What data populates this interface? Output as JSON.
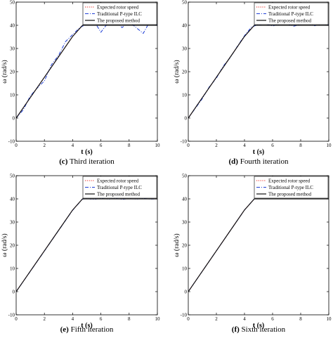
{
  "colors": {
    "expected": "#e8231c",
    "traditional": "#1f3fd6",
    "proposed": "#111111",
    "axis": "#000000"
  },
  "chart_data": [
    {
      "type": "line",
      "caption": {
        "letter": "(c)",
        "text": "Third iteration"
      },
      "xlabel": "t (s)",
      "ylabel": "ω (rad/s)",
      "xlim": [
        0,
        10
      ],
      "ylim": [
        -10,
        50
      ],
      "xticks": [
        0,
        2,
        4,
        6,
        8,
        10
      ],
      "yticks": [
        -10,
        0,
        10,
        20,
        30,
        40,
        50
      ],
      "grid": false,
      "legend": {
        "placement": "top-right",
        "entries": [
          "Expected rotor speed",
          "Traditional P-type ILC",
          "The proposed method"
        ]
      },
      "series": [
        {
          "name": "Expected rotor speed",
          "style": "dotted",
          "x": [
            0,
            1,
            2,
            3,
            4,
            4.7,
            5,
            6,
            7,
            8,
            9,
            10
          ],
          "y": [
            0,
            8.8,
            17.6,
            26.4,
            35.2,
            40,
            40,
            40,
            40,
            40,
            40,
            40
          ]
        },
        {
          "name": "Traditional P-type ILC",
          "style": "dashdot",
          "x": [
            0,
            0.5,
            1,
            1.5,
            2,
            2.5,
            3,
            3.5,
            4,
            4.5,
            5,
            5.5,
            6,
            6.5,
            7,
            7.5,
            8,
            8.5,
            9,
            9.5,
            10
          ],
          "y": [
            0,
            3.5,
            9.5,
            13,
            16,
            23,
            27,
            33,
            36,
            39,
            40.5,
            42,
            37,
            41,
            42,
            39,
            41.5,
            39,
            36.5,
            42,
            40
          ]
        },
        {
          "name": "The proposed method",
          "style": "solid",
          "x": [
            0,
            1,
            2,
            3,
            4,
            4.7,
            5,
            6,
            7,
            8,
            9,
            10
          ],
          "y": [
            0,
            8.8,
            17.6,
            26.4,
            35.2,
            40,
            40,
            40,
            40,
            40,
            40,
            40
          ]
        }
      ]
    },
    {
      "type": "line",
      "caption": {
        "letter": "(d)",
        "text": "Fourth iteration"
      },
      "xlabel": "t (s)",
      "ylabel": "ω (rad/s)",
      "xlim": [
        0,
        10
      ],
      "ylim": [
        -10,
        50
      ],
      "xticks": [
        0,
        2,
        4,
        6,
        8,
        10
      ],
      "yticks": [
        -10,
        0,
        10,
        20,
        30,
        40,
        50
      ],
      "grid": false,
      "legend": {
        "placement": "top-right",
        "entries": [
          "Expected rotor speed",
          "Traditional P-type ILC",
          "The proposed method"
        ]
      },
      "series": [
        {
          "name": "Expected rotor speed",
          "style": "dotted",
          "x": [
            0,
            1,
            2,
            3,
            4,
            4.7,
            5,
            6,
            7,
            8,
            9,
            10
          ],
          "y": [
            0,
            8.8,
            17.6,
            26.4,
            35.2,
            40,
            40,
            40,
            40,
            40,
            40,
            40
          ]
        },
        {
          "name": "Traditional P-type ILC",
          "style": "dashdot",
          "x": [
            0,
            0.5,
            1,
            1.5,
            2,
            2.5,
            3,
            3.5,
            4,
            4.5,
            5,
            5.5,
            6,
            6.5,
            7,
            7.5,
            8,
            8.5,
            9,
            9.5,
            10
          ],
          "y": [
            0,
            4.2,
            8.4,
            13.5,
            17.2,
            22.5,
            26.2,
            31,
            35.5,
            39.3,
            40.3,
            40.6,
            39.7,
            40.5,
            40.8,
            39.6,
            40.4,
            40.7,
            39.8,
            40.6,
            40.2
          ]
        },
        {
          "name": "The proposed method",
          "style": "solid",
          "x": [
            0,
            1,
            2,
            3,
            4,
            4.7,
            5,
            6,
            7,
            8,
            9,
            10
          ],
          "y": [
            0,
            8.8,
            17.6,
            26.4,
            35.2,
            40,
            40,
            40,
            40,
            40,
            40,
            40
          ]
        }
      ]
    },
    {
      "type": "line",
      "caption": {
        "letter": "(e)",
        "text": "Fifth iteration"
      },
      "xlabel": "t (s)",
      "ylabel": "ω (rad/s)",
      "xlim": [
        0,
        10
      ],
      "ylim": [
        -10,
        50
      ],
      "xticks": [
        0,
        2,
        4,
        6,
        8,
        10
      ],
      "yticks": [
        -10,
        0,
        10,
        20,
        30,
        40,
        50
      ],
      "grid": false,
      "legend": {
        "placement": "top-right",
        "entries": [
          "Expected rotor speed",
          "Traditional P-type ILC",
          "The proposed method"
        ]
      },
      "series": [
        {
          "name": "Expected rotor speed",
          "style": "dotted",
          "x": [
            0,
            1,
            2,
            3,
            4,
            4.7,
            5,
            6,
            7,
            8,
            9,
            10
          ],
          "y": [
            0,
            8.8,
            17.6,
            26.4,
            35.2,
            40,
            40,
            40,
            40,
            40,
            40,
            40
          ]
        },
        {
          "name": "Traditional P-type ILC",
          "style": "dashdot",
          "x": [
            0,
            1,
            2,
            3,
            4,
            4.7,
            5,
            5.5,
            6,
            6.5,
            7,
            7.5,
            8,
            8.5,
            9,
            9.5,
            10
          ],
          "y": [
            0,
            8.7,
            17.5,
            26.3,
            35.1,
            39.9,
            40.1,
            39.8,
            40.2,
            39.9,
            40.2,
            39.8,
            40.1,
            39.9,
            40.2,
            39.9,
            40.0
          ]
        },
        {
          "name": "The proposed method",
          "style": "solid",
          "x": [
            0,
            1,
            2,
            3,
            4,
            4.7,
            5,
            6,
            7,
            8,
            9,
            10
          ],
          "y": [
            0,
            8.8,
            17.6,
            26.4,
            35.2,
            40,
            40,
            40,
            40,
            40,
            40,
            40
          ]
        }
      ]
    },
    {
      "type": "line",
      "caption": {
        "letter": "(f)",
        "text": "Sixth iteration"
      },
      "xlabel": "t (s)",
      "ylabel": "ω (rad/s)",
      "xlim": [
        0,
        10
      ],
      "ylim": [
        -10,
        50
      ],
      "xticks": [
        0,
        2,
        4,
        6,
        8,
        10
      ],
      "yticks": [
        -10,
        0,
        10,
        20,
        30,
        40,
        50
      ],
      "grid": false,
      "legend": {
        "placement": "top-right",
        "entries": [
          "Expected rotor speed",
          "Traditional P-type ILC",
          "The proposed method"
        ]
      },
      "series": [
        {
          "name": "Expected rotor speed",
          "style": "dotted",
          "x": [
            0,
            1,
            2,
            3,
            4,
            4.7,
            5,
            6,
            7,
            8,
            9,
            10
          ],
          "y": [
            0,
            8.8,
            17.6,
            26.4,
            35.2,
            40,
            40,
            40,
            40,
            40,
            40,
            40
          ]
        },
        {
          "name": "Traditional P-type ILC",
          "style": "dashdot",
          "x": [
            0,
            1,
            2,
            3,
            4,
            4.7,
            5,
            6,
            7,
            8,
            9,
            10
          ],
          "y": [
            0,
            8.8,
            17.6,
            26.4,
            35.2,
            40,
            40,
            40,
            40,
            40,
            40,
            40
          ]
        },
        {
          "name": "The proposed method",
          "style": "solid",
          "x": [
            0,
            1,
            2,
            3,
            4,
            4.7,
            5,
            6,
            7,
            8,
            9,
            10
          ],
          "y": [
            0,
            8.8,
            17.6,
            26.4,
            35.2,
            40,
            40,
            40,
            40,
            40,
            40,
            40
          ]
        }
      ]
    }
  ]
}
